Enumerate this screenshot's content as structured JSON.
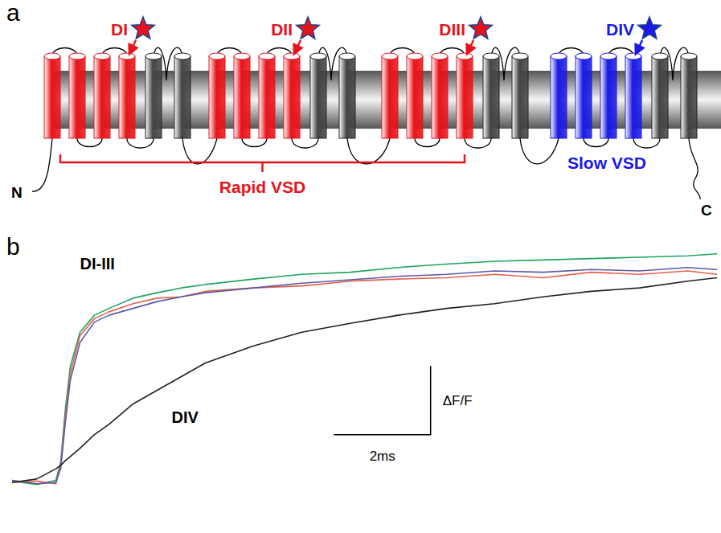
{
  "diagram": {
    "panel_label": "a",
    "domains": [
      {
        "label": "DI",
        "color": "#e8131a"
      },
      {
        "label": "DII",
        "color": "#e8131a"
      },
      {
        "label": "DIII",
        "color": "#e8131a"
      },
      {
        "label": "DIV",
        "color": "#1a1ae6"
      }
    ],
    "groups": [
      {
        "label": "Rapid VSD",
        "color": "#e8131a"
      },
      {
        "label": "Slow VSD",
        "color": "#1a1ae6"
      }
    ],
    "termini": [
      "N",
      "C"
    ]
  },
  "chart_data": {
    "type": "line",
    "panel_label": "b",
    "tick_labels": false,
    "xlim": [
      0,
      14.7
    ],
    "ylim": [
      -0.7,
      3.6
    ],
    "x": [
      0,
      0.5,
      0.9,
      1.0,
      1.1,
      1.2,
      1.4,
      1.7,
      2.0,
      2.5,
      3.0,
      3.5,
      4.0,
      5,
      6,
      7,
      8,
      9,
      10,
      11,
      12,
      13,
      14,
      14.6
    ],
    "series": [
      {
        "color": "#1fa463",
        "values": [
          0.02,
          -0.03,
          0.03,
          0.3,
          1.1,
          1.7,
          2.2,
          2.45,
          2.55,
          2.7,
          2.78,
          2.85,
          2.9,
          2.98,
          3.05,
          3.08,
          3.15,
          3.2,
          3.24,
          3.26,
          3.28,
          3.3,
          3.32,
          3.35
        ]
      },
      {
        "color": "#e8604a",
        "values": [
          0.0,
          0.02,
          -0.02,
          0.25,
          1.0,
          1.6,
          2.15,
          2.4,
          2.5,
          2.62,
          2.7,
          2.72,
          2.8,
          2.85,
          2.88,
          2.95,
          2.98,
          3.0,
          3.05,
          3.0,
          3.08,
          3.05,
          3.1,
          3.05
        ]
      },
      {
        "color": "#5a5aa8",
        "values": [
          0.03,
          -0.02,
          0.0,
          0.2,
          0.9,
          1.5,
          2.05,
          2.35,
          2.45,
          2.55,
          2.65,
          2.72,
          2.78,
          2.85,
          2.92,
          2.97,
          3.02,
          3.05,
          3.1,
          3.08,
          3.12,
          3.1,
          3.15,
          3.12
        ]
      },
      {
        "color": "#222222",
        "values": [
          0.0,
          0.05,
          0.2,
          0.25,
          0.32,
          0.38,
          0.5,
          0.7,
          0.85,
          1.15,
          1.35,
          1.55,
          1.75,
          2.0,
          2.2,
          2.33,
          2.45,
          2.55,
          2.62,
          2.72,
          2.8,
          2.85,
          2.95,
          3.0
        ]
      }
    ],
    "annotations": [
      "DI-III",
      "DIV"
    ],
    "scale_bars": [
      {
        "axis": "x",
        "value": 2,
        "label": "2ms"
      },
      {
        "axis": "y",
        "value": 1,
        "label": "ΔF/F"
      }
    ]
  }
}
